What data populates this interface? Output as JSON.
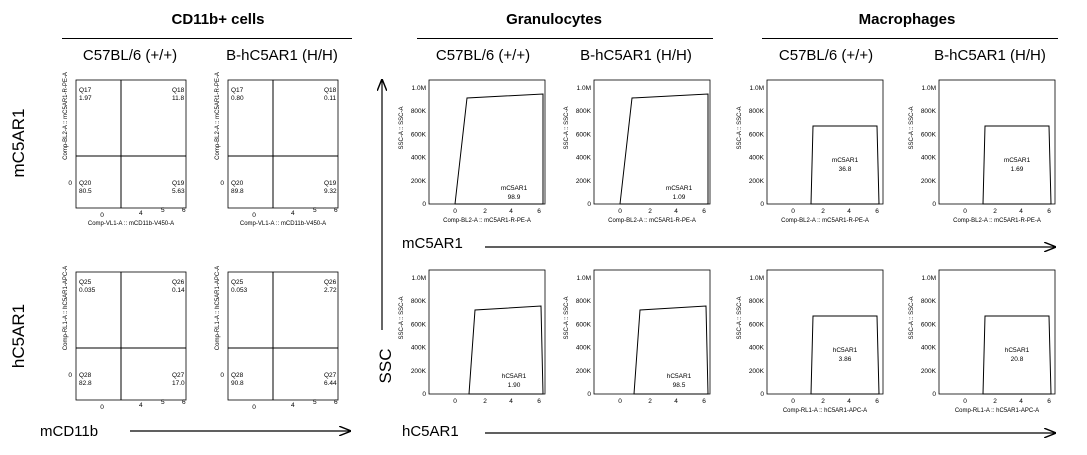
{
  "sections": {
    "cd11b": {
      "title": "CD11b+ cells"
    },
    "gran": {
      "title": "Granulocytes"
    },
    "macro": {
      "title": "Macrophages"
    }
  },
  "strains": {
    "wt": "C57BL/6 (+/+)",
    "hum": "B-hC5AR1 (H/H)"
  },
  "row_labels": {
    "m": "mC5AR1",
    "h": "hC5AR1",
    "ssc": "SSC"
  },
  "axis_labels": {
    "cd11b": "mCD11b",
    "m": "mC5AR1",
    "h": "hC5AR1"
  },
  "ticks": {
    "log": [
      "0",
      "4",
      "5",
      "6"
    ],
    "log_alt": [
      "0",
      "2",
      "4",
      "6"
    ],
    "ssc": [
      "0",
      "200K",
      "400K",
      "600K",
      "800K",
      "1.0M"
    ]
  },
  "colors": {
    "hot": "#d40000",
    "warm": "#f7e600",
    "mid": "#22c43a",
    "cool": "#1a5fd6",
    "sparse": "#2b2bb5",
    "gate": "#000000"
  },
  "quadrant_plots": [
    {
      "id": "cd11b-m-wt",
      "x_axis": "Comp-VL1-A :: mCD11b-V450-A",
      "y_axis": "Comp-BL2-A :: mC5AR1-R-PE-A",
      "quadrants": {
        "tl": [
          "Q17",
          "1.97"
        ],
        "tr": [
          "Q18",
          "11.8"
        ],
        "bl": [
          "Q20",
          "80.5"
        ],
        "br": [
          "Q19",
          "5.63"
        ]
      }
    },
    {
      "id": "cd11b-m-hum",
      "x_axis": "Comp-VL1-A :: mCD11b-V450-A",
      "y_axis": "Comp-BL2-A :: mC5AR1-R-PE-A",
      "quadrants": {
        "tl": [
          "Q17",
          "0.80"
        ],
        "tr": [
          "Q18",
          "0.11"
        ],
        "bl": [
          "Q20",
          "89.8"
        ],
        "br": [
          "Q19",
          "9.32"
        ]
      }
    },
    {
      "id": "cd11b-h-wt",
      "x_axis": "",
      "y_axis": "Comp-RL1-A :: hC5AR1-APC-A",
      "quadrants": {
        "tl": [
          "Q25",
          "0.035"
        ],
        "tr": [
          "Q26",
          "0.14"
        ],
        "bl": [
          "Q28",
          "82.8"
        ],
        "br": [
          "Q27",
          "17.0"
        ]
      }
    },
    {
      "id": "cd11b-h-hum",
      "x_axis": "",
      "y_axis": "Comp-RL1-A :: hC5AR1-APC-A",
      "quadrants": {
        "tl": [
          "Q25",
          "0.053"
        ],
        "tr": [
          "Q26",
          "2.72"
        ],
        "bl": [
          "Q28",
          "90.8"
        ],
        "br": [
          "Q27",
          "6.44"
        ]
      }
    }
  ],
  "gate_plots": [
    {
      "id": "gran-m-wt",
      "x_axis": "Comp-BL2-A :: mC5AR1-R-PE-A",
      "y_axis": "SSC-A :: SSC-A",
      "gate_name": "mC5AR1",
      "value": "98.9"
    },
    {
      "id": "gran-m-hum",
      "x_axis": "Comp-BL2-A :: mC5AR1-R-PE-A",
      "y_axis": "SSC-A :: SSC-A",
      "gate_name": "mC5AR1",
      "value": "1.09"
    },
    {
      "id": "macro-m-wt",
      "x_axis": "Comp-BL2-A :: mC5AR1-R-PE-A",
      "y_axis": "SSC-A :: SSC-A",
      "gate_name": "mC5AR1",
      "value": "36.8"
    },
    {
      "id": "macro-m-hum",
      "x_axis": "Comp-BL2-A :: mC5AR1-R-PE-A",
      "y_axis": "SSC-A :: SSC-A",
      "gate_name": "mC5AR1",
      "value": "1.69"
    },
    {
      "id": "gran-h-wt",
      "x_axis": "",
      "y_axis": "SSC-A :: SSC-A",
      "gate_name": "hC5AR1",
      "value": "1.90"
    },
    {
      "id": "gran-h-hum",
      "x_axis": "",
      "y_axis": "SSC-A :: SSC-A",
      "gate_name": "hC5AR1",
      "value": "98.5"
    },
    {
      "id": "macro-h-wt",
      "x_axis": "Comp-RL1-A :: hC5AR1-APC-A",
      "y_axis": "SSC-A :: SSC-A",
      "gate_name": "hC5AR1",
      "value": "3.86"
    },
    {
      "id": "macro-h-hum",
      "x_axis": "Comp-RL1-A :: hC5AR1-APC-A",
      "y_axis": "SSC-A :: SSC-A",
      "gate_name": "hC5AR1",
      "value": "20.8"
    }
  ]
}
